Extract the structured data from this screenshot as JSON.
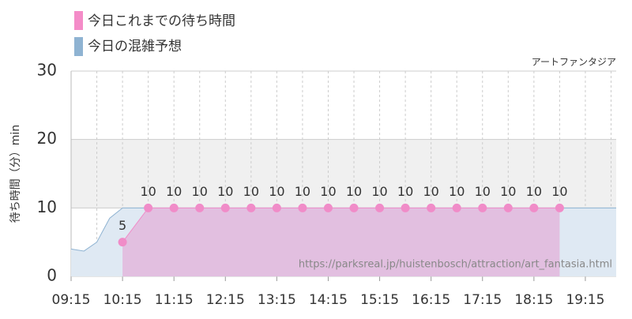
{
  "chart_data": {
    "type": "line",
    "legend": [
      "今日これまでの待ち時間",
      "今日の混雑予想"
    ],
    "subtitle": "アートファンタジア",
    "y_label": "待ち時間（分）min",
    "annotation": "https://parksreal.jp/huistenbosch/attraction/art_fantasia.html",
    "xlim": [
      "09:15",
      "19:51"
    ],
    "xticks": [
      "09:15",
      "10:15",
      "11:15",
      "12:15",
      "13:15",
      "14:15",
      "15:15",
      "16:15",
      "17:15",
      "18:15",
      "19:15"
    ],
    "ylim": [
      0,
      30
    ],
    "yticks": [
      0,
      10,
      20,
      30
    ],
    "highlight_band": [
      10,
      20
    ],
    "grid": true,
    "series": [
      {
        "name": "今日これまでの待ち時間",
        "color": "#f08cc8",
        "fill": "#e2bfe0",
        "x": [
          "10:15",
          "10:45",
          "11:15",
          "11:45",
          "12:15",
          "12:45",
          "13:15",
          "13:45",
          "14:15",
          "14:45",
          "15:15",
          "15:45",
          "16:15",
          "16:45",
          "17:15",
          "17:45",
          "18:15",
          "18:45"
        ],
        "values": [
          5,
          10,
          10,
          10,
          10,
          10,
          10,
          10,
          10,
          10,
          10,
          10,
          10,
          10,
          10,
          10,
          10,
          10
        ]
      },
      {
        "name": "今日の混雑予想",
        "color": "#8fb3d2",
        "fill": "#dfe9f3",
        "x": [
          "09:15",
          "09:30",
          "09:45",
          "10:00",
          "10:15",
          "10:45",
          "19:51"
        ],
        "values": [
          4,
          3.7,
          5,
          8.5,
          10,
          10,
          10
        ]
      }
    ]
  }
}
